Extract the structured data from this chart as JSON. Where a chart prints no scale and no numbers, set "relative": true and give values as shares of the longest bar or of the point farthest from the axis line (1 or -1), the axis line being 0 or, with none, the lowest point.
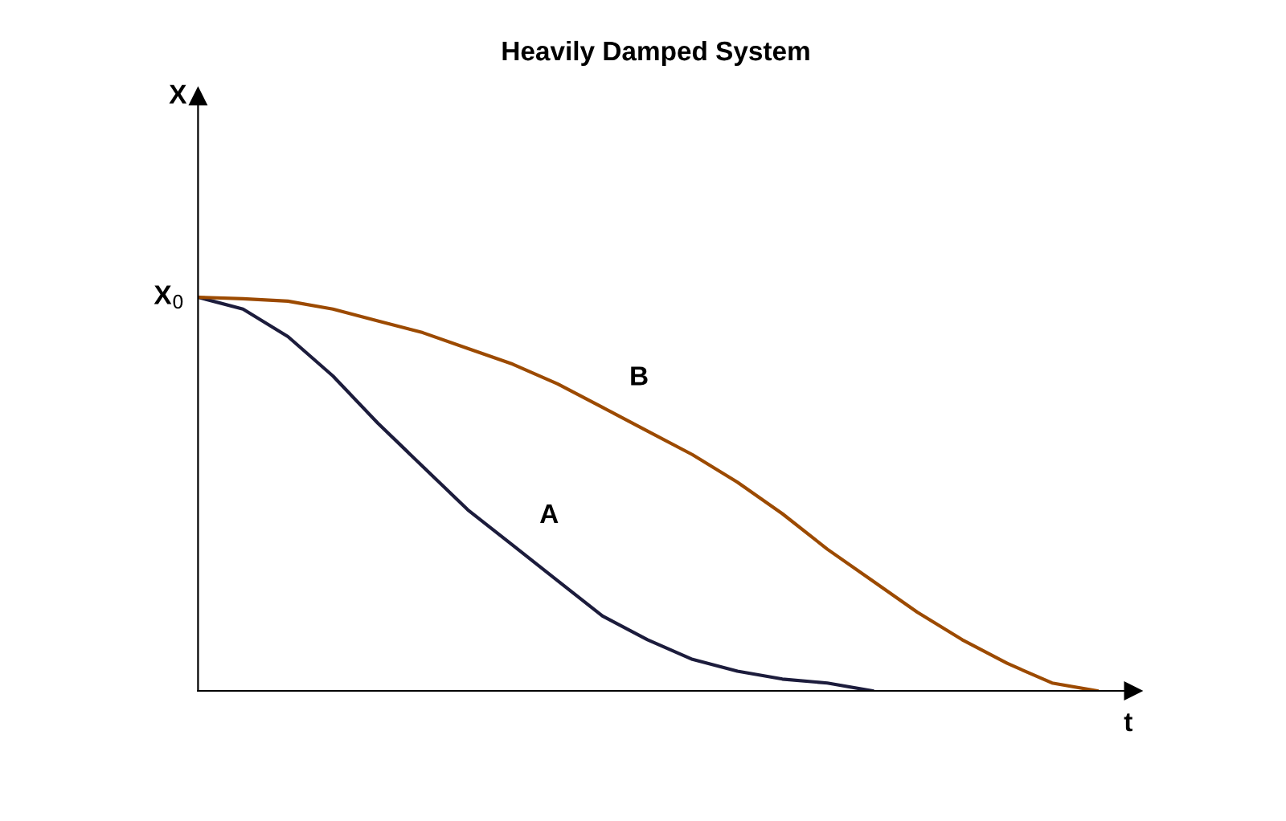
{
  "chart_data": {
    "type": "line",
    "title": "Heavily Damped System",
    "xlabel": "t",
    "relative": true,
    "legend": false,
    "marker": "none",
    "line_style": "solid",
    "categories": [
      null,
      null,
      null,
      null,
      null,
      null,
      null,
      null,
      null,
      null,
      null,
      null,
      null,
      null,
      null,
      null,
      null,
      null,
      null,
      null,
      null
    ],
    "series": [
      {
        "name": "A",
        "color": "#1c1c3c",
        "values": [
          1,
          0.97,
          0.9,
          0.8,
          0.68,
          0.57,
          0.46,
          0.37,
          0.28,
          0.19,
          0.13,
          0.08,
          0.05,
          0.03,
          0.02,
          0,
          null,
          null,
          null,
          null,
          null
        ]
      },
      {
        "name": "B",
        "color": "#9c4a00",
        "values": [
          1,
          0.996,
          0.99,
          0.97,
          0.94,
          0.91,
          0.87,
          0.83,
          0.78,
          0.72,
          0.66,
          0.6,
          0.53,
          0.45,
          0.36,
          0.28,
          0.2,
          0.13,
          0.07,
          0.02,
          0
        ]
      }
    ],
    "annotations": [
      "X$_{0}$",
      "X"
    ]
  }
}
